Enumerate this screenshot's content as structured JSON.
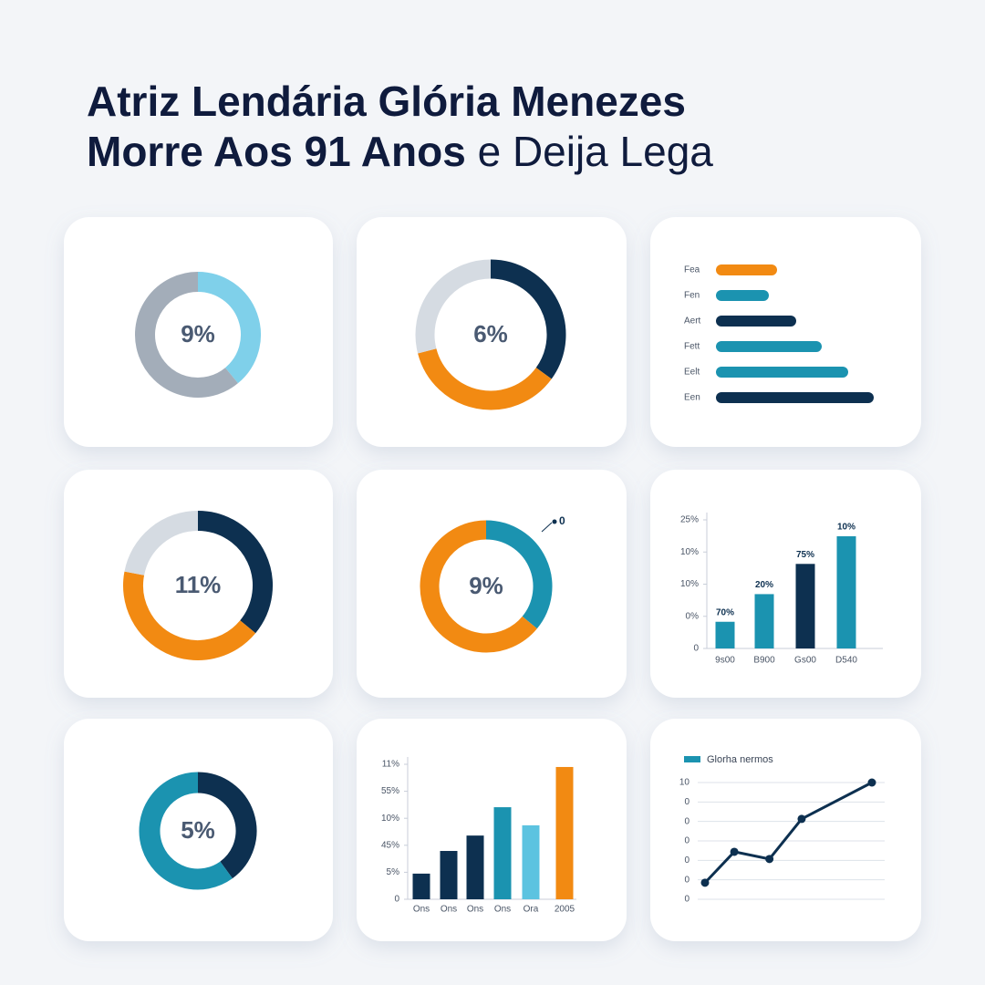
{
  "title": [
    "Atriz Lendária Glória Menezes",
    "Morre Aos 91 Anos",
    "e Deija Lega"
  ],
  "chart_data": [
    {
      "type": "donut",
      "center_label": "9%",
      "values": [
        39,
        61
      ],
      "colors": [
        "#7fd0ea",
        "#a3adb9"
      ]
    },
    {
      "type": "donut",
      "center_label": "6%",
      "values": [
        35,
        36,
        29
      ],
      "colors": [
        "#0d3050",
        "#f28a12",
        "#d5dbe2"
      ]
    },
    {
      "type": "hbar",
      "categories": [
        "Fea",
        "Fen",
        "Aert",
        "Fett",
        "Eelt",
        "Een"
      ],
      "values": [
        67,
        58,
        88,
        116,
        145,
        173
      ],
      "colors": [
        "#f28a12",
        "#1b93b0",
        "#0d3050",
        "#1b93b0",
        "#1b93b0",
        "#0d3050"
      ],
      "xlim": [
        0,
        180
      ]
    },
    {
      "type": "donut",
      "center_label": "11%",
      "values": [
        36,
        42,
        22
      ],
      "colors": [
        "#0d3050",
        "#f28a12",
        "#d5dbe2"
      ]
    },
    {
      "type": "donut",
      "center_label": "9%",
      "annotation": "0",
      "values": [
        36,
        64
      ],
      "colors": [
        "#1b93b0",
        "#f28a12"
      ]
    },
    {
      "type": "bar",
      "categories": [
        "9s00",
        "B900",
        "Gs00",
        "D540"
      ],
      "values": [
        0.83,
        1.69,
        2.63,
        3.49
      ],
      "annotations": [
        "70%",
        "20%",
        "75%",
        "10%"
      ],
      "colors": [
        "#1b93b0",
        "#1b93b0",
        "#0d3050",
        "#1b93b0"
      ],
      "ylim": [
        0,
        4
      ],
      "yticks": [
        0,
        {
          "value": 1,
          "label": "0%"
        },
        {
          "value": 2,
          "label": "10%"
        },
        {
          "value": 3,
          "label": "10%"
        },
        {
          "value": 4,
          "label": "25%"
        }
      ]
    },
    {
      "type": "donut",
      "center_label": "5%",
      "values": [
        40,
        60
      ],
      "colors": [
        "#0d3050",
        "#1b93b0"
      ]
    },
    {
      "type": "bar",
      "categories": [
        "Ons",
        "Ons",
        "Ons",
        "Ons",
        "Ora",
        "2005"
      ],
      "values": [
        0.95,
        1.79,
        2.36,
        3.41,
        2.74,
        4.9
      ],
      "colors": [
        "#0d3050",
        "#0d3050",
        "#0d3050",
        "#1b93b0",
        "#5cc3e0",
        "#f28a12"
      ],
      "ylim": [
        0,
        5
      ],
      "yticks": [
        0,
        {
          "value": 1,
          "label": "5%"
        },
        {
          "value": 2,
          "label": "45%"
        },
        {
          "value": 3,
          "label": "10%"
        },
        {
          "value": 4,
          "label": "55%"
        },
        {
          "value": 5,
          "label": "11%"
        }
      ]
    },
    {
      "type": "line",
      "series": [
        {
          "name": "Glorha nermos",
          "color": "#0d3050",
          "legend_color": "#1b93b0",
          "x": [
            0,
            1,
            2.2,
            3.3,
            5.7
          ],
          "values": [
            0.85,
            2.44,
            2.07,
            4.13,
            6.0
          ]
        }
      ],
      "xlim": [
        -0.4,
        6.1
      ],
      "ylim": [
        0,
        6
      ],
      "yticks": [
        0,
        {
          "value": 1,
          "label": "0"
        },
        {
          "value": 2,
          "label": "0"
        },
        {
          "value": 3,
          "label": "0"
        },
        {
          "value": 4,
          "label": "0"
        },
        {
          "value": 5,
          "label": "0"
        },
        {
          "value": 6,
          "label": "10"
        }
      ],
      "grid": true
    }
  ]
}
